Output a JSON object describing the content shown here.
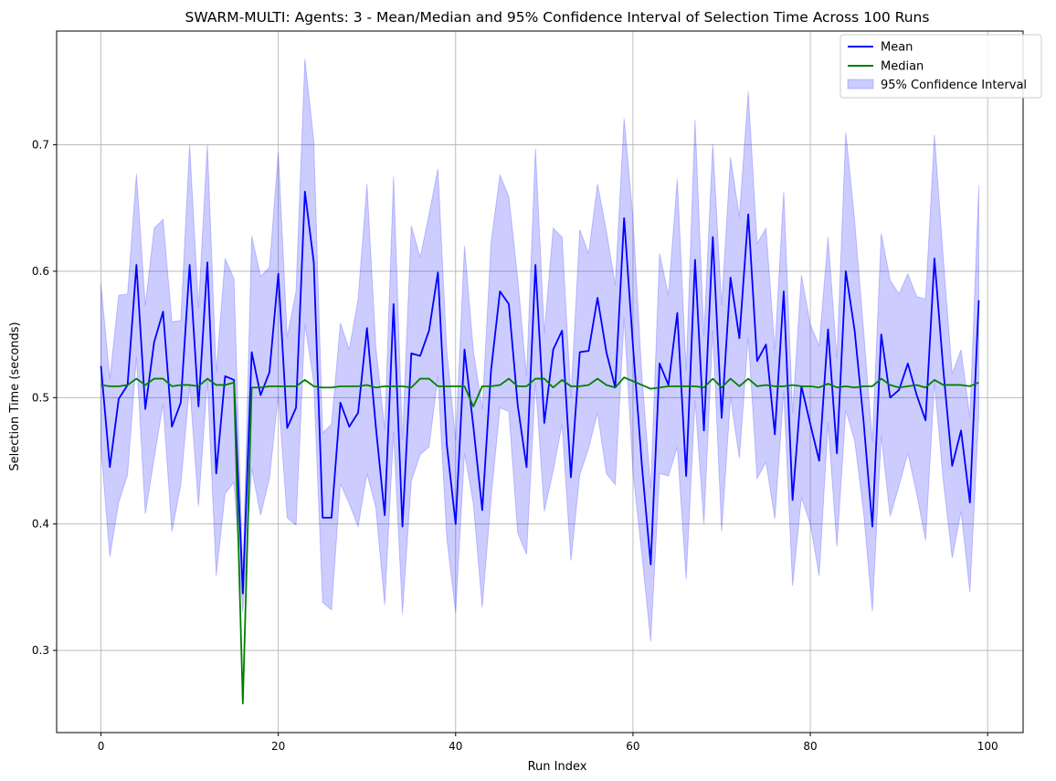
{
  "chart_data": {
    "type": "line",
    "title": "SWARM-MULTI: Agents: 3 - Mean/Median and 95% Confidence Interval of Selection Time Across 100 Runs",
    "xlabel": "Run Index",
    "ylabel": "Selection Time (seconds)",
    "xlim": [
      -5,
      104
    ],
    "ylim": [
      0.235,
      0.79
    ],
    "xticks": [
      0,
      20,
      40,
      60,
      80,
      100
    ],
    "yticks": [
      0.3,
      0.4,
      0.5,
      0.6,
      0.7
    ],
    "xtick_labels": [
      "0",
      "20",
      "40",
      "60",
      "80",
      "100"
    ],
    "ytick_labels": [
      "0.3",
      "0.4",
      "0.5",
      "0.6",
      "0.7"
    ],
    "grid": true,
    "legend_position": "top-right",
    "x": [
      0,
      1,
      2,
      3,
      4,
      5,
      6,
      7,
      8,
      9,
      10,
      11,
      12,
      13,
      14,
      15,
      16,
      17,
      18,
      19,
      20,
      21,
      22,
      23,
      24,
      25,
      26,
      27,
      28,
      29,
      30,
      31,
      32,
      33,
      34,
      35,
      36,
      37,
      38,
      39,
      40,
      41,
      42,
      43,
      44,
      45,
      46,
      47,
      48,
      49,
      50,
      51,
      52,
      53,
      54,
      55,
      56,
      57,
      58,
      59,
      60,
      61,
      62,
      63,
      64,
      65,
      66,
      67,
      68,
      69,
      70,
      71,
      72,
      73,
      74,
      75,
      76,
      77,
      78,
      79,
      80,
      81,
      82,
      83,
      84,
      85,
      86,
      87,
      88,
      89,
      90,
      91,
      92,
      93,
      94,
      95,
      96,
      97,
      98,
      99
    ],
    "series": [
      {
        "name": "Mean",
        "color": "#0000ff",
        "values": [
          0.525,
          0.445,
          0.499,
          0.51,
          0.605,
          0.491,
          0.544,
          0.568,
          0.477,
          0.496,
          0.605,
          0.493,
          0.607,
          0.44,
          0.517,
          0.514,
          0.345,
          0.536,
          0.502,
          0.52,
          0.598,
          0.476,
          0.492,
          0.663,
          0.607,
          0.405,
          0.405,
          0.496,
          0.477,
          0.488,
          0.555,
          0.477,
          0.407,
          0.574,
          0.398,
          0.535,
          0.533,
          0.553,
          0.599,
          0.463,
          0.4,
          0.538,
          0.477,
          0.411,
          0.522,
          0.584,
          0.574,
          0.494,
          0.445,
          0.605,
          0.48,
          0.538,
          0.553,
          0.437,
          0.536,
          0.537,
          0.579,
          0.536,
          0.508,
          0.642,
          0.541,
          0.447,
          0.368,
          0.527,
          0.51,
          0.567,
          0.438,
          0.609,
          0.474,
          0.627,
          0.484,
          0.595,
          0.547,
          0.645,
          0.529,
          0.542,
          0.471,
          0.584,
          0.419,
          0.509,
          0.479,
          0.45,
          0.554,
          0.456,
          0.6,
          0.553,
          0.482,
          0.398,
          0.55,
          0.5,
          0.506,
          0.527,
          0.502,
          0.482,
          0.61,
          0.522,
          0.446,
          0.474,
          0.417,
          0.577
        ]
      },
      {
        "name": "Median",
        "color": "#008000",
        "values": [
          0.51,
          0.509,
          0.509,
          0.51,
          0.515,
          0.51,
          0.515,
          0.515,
          0.509,
          0.51,
          0.51,
          0.509,
          0.515,
          0.51,
          0.51,
          0.512,
          0.258,
          0.508,
          0.508,
          0.509,
          0.509,
          0.509,
          0.509,
          0.514,
          0.509,
          0.508,
          0.508,
          0.509,
          0.509,
          0.509,
          0.51,
          0.508,
          0.509,
          0.509,
          0.509,
          0.508,
          0.515,
          0.515,
          0.509,
          0.509,
          0.509,
          0.509,
          0.493,
          0.509,
          0.509,
          0.51,
          0.515,
          0.509,
          0.509,
          0.515,
          0.515,
          0.508,
          0.514,
          0.509,
          0.509,
          0.51,
          0.515,
          0.51,
          0.508,
          0.516,
          0.513,
          0.51,
          0.507,
          0.508,
          0.509,
          0.509,
          0.509,
          0.509,
          0.508,
          0.515,
          0.508,
          0.515,
          0.509,
          0.515,
          0.509,
          0.51,
          0.509,
          0.509,
          0.51,
          0.509,
          0.509,
          0.508,
          0.511,
          0.508,
          0.509,
          0.508,
          0.509,
          0.509,
          0.515,
          0.51,
          0.508,
          0.509,
          0.51,
          0.508,
          0.514,
          0.51,
          0.51,
          0.51,
          0.509,
          0.512
        ]
      }
    ],
    "band": {
      "name": "95% Confidence Interval",
      "color": "#0000ff",
      "opacity": 0.2,
      "upper": [
        0.59,
        0.515,
        0.581,
        0.582,
        0.677,
        0.573,
        0.634,
        0.641,
        0.56,
        0.561,
        0.7,
        0.571,
        0.7,
        0.52,
        0.61,
        0.594,
        0.36,
        0.628,
        0.596,
        0.603,
        0.694,
        0.548,
        0.584,
        0.768,
        0.703,
        0.472,
        0.479,
        0.559,
        0.538,
        0.578,
        0.669,
        0.54,
        0.475,
        0.675,
        0.467,
        0.636,
        0.611,
        0.645,
        0.681,
        0.537,
        0.467,
        0.62,
        0.537,
        0.491,
        0.623,
        0.676,
        0.659,
        0.594,
        0.517,
        0.697,
        0.551,
        0.634,
        0.627,
        0.5,
        0.633,
        0.614,
        0.669,
        0.632,
        0.589,
        0.721,
        0.642,
        0.518,
        0.428,
        0.614,
        0.581,
        0.673,
        0.521,
        0.72,
        0.549,
        0.701,
        0.573,
        0.69,
        0.643,
        0.742,
        0.622,
        0.634,
        0.538,
        0.663,
        0.488,
        0.597,
        0.558,
        0.541,
        0.627,
        0.531,
        0.71,
        0.64,
        0.554,
        0.465,
        0.63,
        0.593,
        0.582,
        0.598,
        0.58,
        0.578,
        0.708,
        0.61,
        0.519,
        0.538,
        0.484,
        0.668
      ],
      "lower": [
        0.46,
        0.374,
        0.417,
        0.439,
        0.532,
        0.408,
        0.452,
        0.495,
        0.394,
        0.431,
        0.51,
        0.414,
        0.514,
        0.359,
        0.424,
        0.433,
        0.33,
        0.444,
        0.407,
        0.436,
        0.502,
        0.405,
        0.399,
        0.558,
        0.512,
        0.338,
        0.332,
        0.432,
        0.416,
        0.398,
        0.44,
        0.413,
        0.336,
        0.473,
        0.329,
        0.434,
        0.455,
        0.461,
        0.517,
        0.389,
        0.33,
        0.456,
        0.416,
        0.334,
        0.421,
        0.492,
        0.489,
        0.393,
        0.376,
        0.512,
        0.41,
        0.442,
        0.479,
        0.371,
        0.439,
        0.46,
        0.488,
        0.44,
        0.431,
        0.563,
        0.441,
        0.376,
        0.307,
        0.44,
        0.438,
        0.461,
        0.356,
        0.498,
        0.4,
        0.553,
        0.394,
        0.5,
        0.452,
        0.548,
        0.436,
        0.449,
        0.404,
        0.505,
        0.351,
        0.421,
        0.4,
        0.359,
        0.48,
        0.382,
        0.49,
        0.466,
        0.41,
        0.331,
        0.47,
        0.406,
        0.43,
        0.456,
        0.424,
        0.387,
        0.512,
        0.434,
        0.373,
        0.41,
        0.346,
        0.486
      ]
    }
  }
}
